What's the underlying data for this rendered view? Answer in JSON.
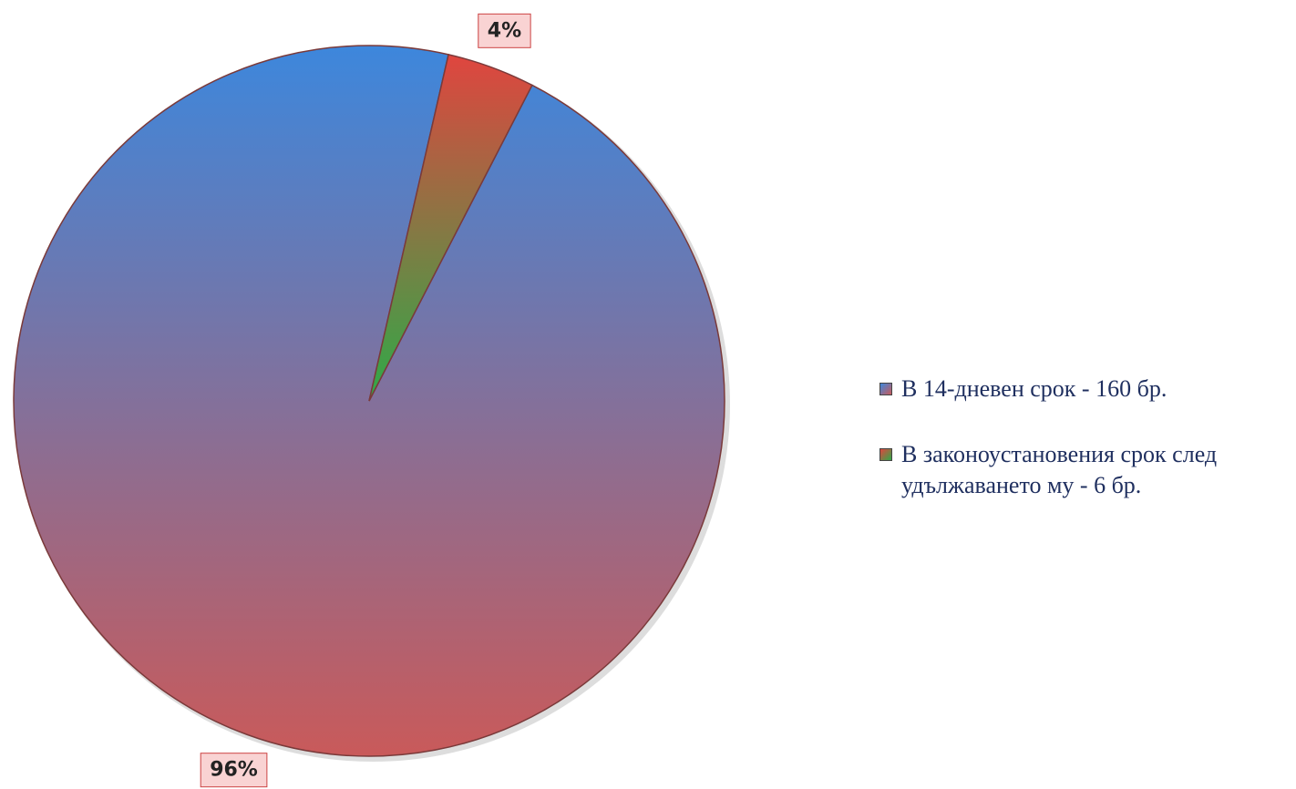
{
  "chart_data": {
    "type": "pie",
    "categories": [
      "В 14-дневен срок - 160 бр.",
      "В законоустановения срок след удължаването му - 6 бр."
    ],
    "values": [
      96,
      4
    ],
    "value_labels": [
      "96%",
      "4%"
    ],
    "colors": [
      [
        "#3d87dc",
        "#c95a5a"
      ],
      [
        "#e0453f",
        "#2eaa48"
      ]
    ],
    "legend": "right"
  }
}
